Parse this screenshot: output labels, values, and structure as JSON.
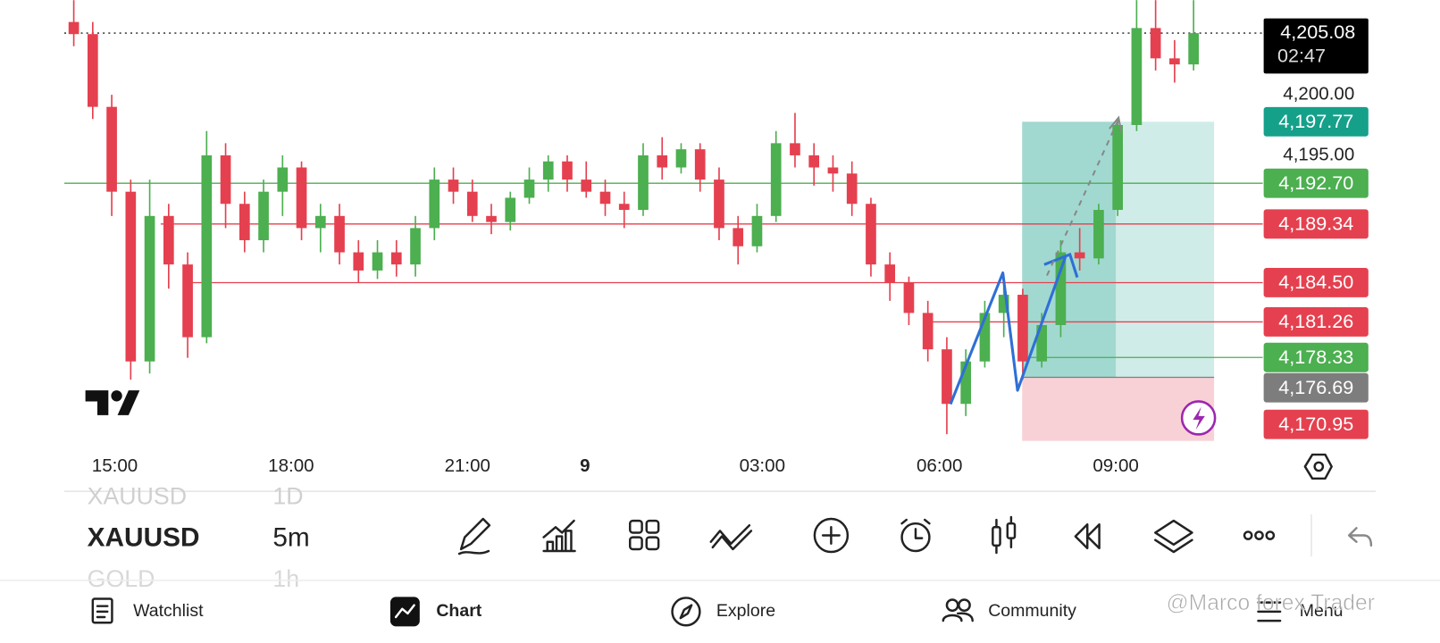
{
  "chart_data": {
    "type": "candlestick",
    "ylim": [
      4171.45,
      4207.8
    ],
    "yticks": [
      {
        "value": 4200,
        "label": "4,200.00"
      },
      {
        "value": 4195,
        "label": "4,195.00"
      }
    ],
    "xticks": [
      "15:00",
      "18:00",
      "21:00",
      "9",
      "03:00",
      "06:00",
      "09:00"
    ],
    "up_color": "#4caf50",
    "down_color": "#e5404f",
    "candles": [
      [
        4206,
        4207.8,
        4204,
        4205
      ],
      [
        4205,
        4206,
        4198,
        4199
      ],
      [
        4199,
        4200,
        4190,
        4192
      ],
      [
        4192,
        4193,
        4176.5,
        4178
      ],
      [
        4178,
        4193,
        4177,
        4190
      ],
      [
        4190,
        4191,
        4184,
        4186
      ],
      [
        4186,
        4187,
        4178.3,
        4180
      ],
      [
        4180,
        4197,
        4179.5,
        4195
      ],
      [
        4195,
        4196,
        4189,
        4191
      ],
      [
        4191,
        4192,
        4187,
        4188
      ],
      [
        4188,
        4193,
        4187,
        4192
      ],
      [
        4192,
        4195,
        4190,
        4194
      ],
      [
        4194,
        4194.5,
        4188,
        4189
      ],
      [
        4189,
        4191,
        4187,
        4190
      ],
      [
        4190,
        4191,
        4186,
        4187
      ],
      [
        4187,
        4188,
        4184.5,
        4185.5
      ],
      [
        4185.5,
        4188,
        4184.8,
        4187
      ],
      [
        4187,
        4188,
        4185,
        4186
      ],
      [
        4186,
        4190,
        4185,
        4189
      ],
      [
        4189,
        4194,
        4188,
        4193
      ],
      [
        4193,
        4194,
        4191,
        4192
      ],
      [
        4192,
        4193,
        4189.5,
        4190
      ],
      [
        4190,
        4191,
        4188.5,
        4189.5
      ],
      [
        4189.5,
        4192,
        4188.8,
        4191.5
      ],
      [
        4191.5,
        4194,
        4191,
        4193
      ],
      [
        4193,
        4195,
        4192,
        4194.5
      ],
      [
        4194.5,
        4195,
        4192,
        4193
      ],
      [
        4193,
        4194.5,
        4191.5,
        4192
      ],
      [
        4192,
        4193,
        4190,
        4191
      ],
      [
        4191,
        4192,
        4189,
        4190.5
      ],
      [
        4190.5,
        4196,
        4190,
        4195
      ],
      [
        4195,
        4196.5,
        4193,
        4194
      ],
      [
        4194,
        4196,
        4193.5,
        4195.5
      ],
      [
        4195.5,
        4196,
        4192,
        4193
      ],
      [
        4193,
        4194,
        4188,
        4189
      ],
      [
        4189,
        4190,
        4186,
        4187.5
      ],
      [
        4187.5,
        4191,
        4187,
        4190
      ],
      [
        4190,
        4197,
        4189.5,
        4196
      ],
      [
        4196,
        4198.5,
        4194,
        4195
      ],
      [
        4195,
        4196,
        4192.5,
        4194
      ],
      [
        4194,
        4195,
        4192,
        4193.5
      ],
      [
        4193.5,
        4194.5,
        4190,
        4191
      ],
      [
        4191,
        4191.5,
        4185,
        4186
      ],
      [
        4186,
        4187,
        4183,
        4184.5
      ],
      [
        4184.5,
        4185,
        4181,
        4182
      ],
      [
        4182,
        4183,
        4178,
        4179
      ],
      [
        4179,
        4180,
        4172,
        4174.5
      ],
      [
        4174.5,
        4179,
        4173.5,
        4178
      ],
      [
        4178,
        4183,
        4177.5,
        4182
      ],
      [
        4182,
        4185,
        4180,
        4183.5
      ],
      [
        4183.5,
        4184,
        4176.5,
        4178
      ],
      [
        4178,
        4182,
        4177.5,
        4181
      ],
      [
        4181,
        4188,
        4180,
        4187
      ],
      [
        4187,
        4189,
        4185.5,
        4186.5
      ],
      [
        4186.5,
        4191,
        4186,
        4190.5
      ],
      [
        4190.5,
        4198,
        4190,
        4197.5
      ],
      [
        4197.5,
        4207.8,
        4197,
        4205.5
      ],
      [
        4205.5,
        4207.8,
        4202,
        4203
      ],
      [
        4203,
        4204.5,
        4201,
        4202.5
      ],
      [
        4202.5,
        4207.8,
        4202,
        4205.08
      ]
    ],
    "price_lines": [
      {
        "value": 4205.08,
        "label": "4,205.08",
        "color": "#000000"
      },
      {
        "value": 4197.77,
        "label": "4,197.77",
        "color": "#15a08a"
      },
      {
        "value": 4192.7,
        "label": "4,192.70",
        "color": "#4caf50"
      },
      {
        "value": 4189.34,
        "label": "4,189.34",
        "color": "#e5404f"
      },
      {
        "value": 4184.5,
        "label": "4,184.50",
        "color": "#e5404f"
      },
      {
        "value": 4181.26,
        "label": "4,181.26",
        "color": "#e5404f"
      },
      {
        "value": 4178.33,
        "label": "4,178.33",
        "color": "#4caf50"
      },
      {
        "value": 4176.69,
        "label": "4,176.69",
        "color": "#7d7d7d"
      },
      {
        "value": 4170.95,
        "label": "4,170.95",
        "color": "#e5404f"
      }
    ],
    "countdown": "02:47"
  },
  "toolbar": {
    "symbol": "XAUUSD",
    "interval": "5m",
    "prev": [
      "XAUUSD",
      "1D"
    ],
    "next": [
      "GOLD",
      "1h"
    ]
  },
  "nav": [
    "Watchlist",
    "Chart",
    "Explore",
    "Community",
    "Menu"
  ],
  "watermark": "@Marco forex Trader"
}
